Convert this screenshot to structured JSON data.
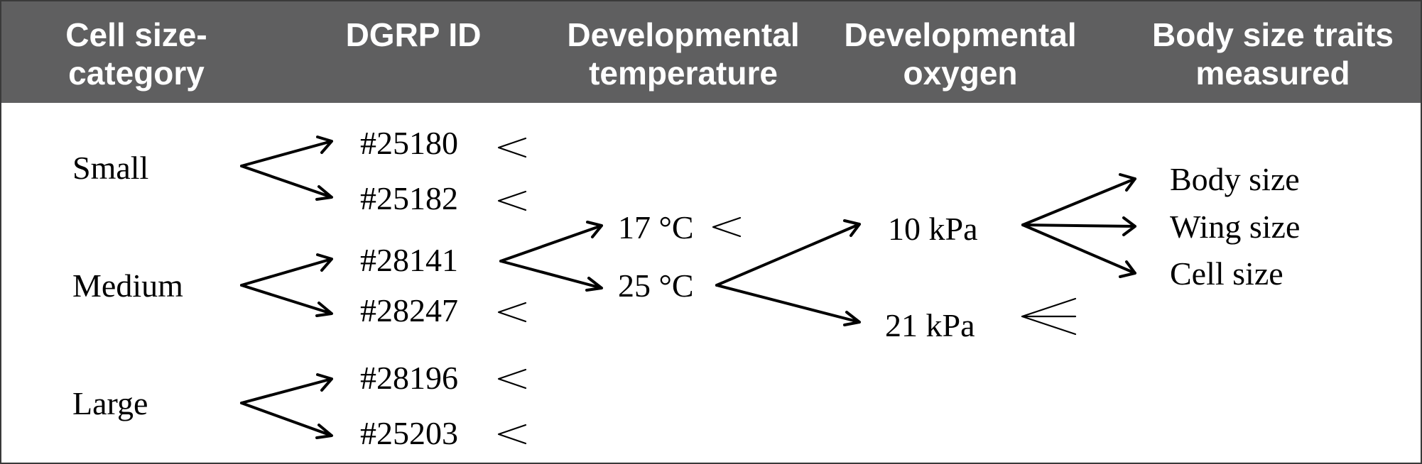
{
  "header": {
    "col1": {
      "line1": "Cell size-",
      "line2": "category"
    },
    "col2": {
      "line1": "DGRP ID"
    },
    "col3": {
      "line1": "Developmental",
      "line2": "temperature"
    },
    "col4": {
      "line1": "Developmental",
      "line2": "oxygen"
    },
    "col5": {
      "line1": "Body size traits",
      "line2": "measured"
    }
  },
  "categories": [
    "Small",
    "Medium",
    "Large"
  ],
  "dgrp_ids": [
    "#25180",
    "#25182",
    "#28141",
    "#28247",
    "#28196",
    "#25203"
  ],
  "temperatures": [
    "17 °C",
    "25 °C"
  ],
  "oxygen_levels": [
    "10 kPa",
    "21 kPa"
  ],
  "traits": [
    "Body size",
    "Wing size",
    "Cell size"
  ],
  "colors": {
    "header_background": "#5f5f60",
    "header_text": "#ffffff",
    "line": "#000000"
  }
}
